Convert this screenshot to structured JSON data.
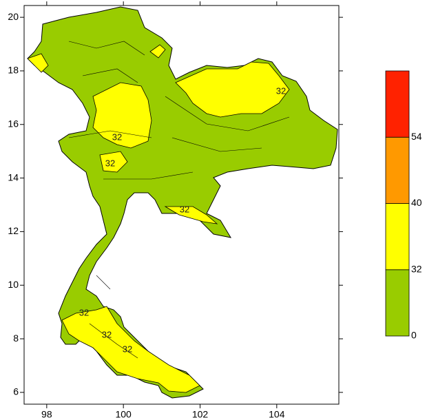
{
  "map": {
    "xlim": [
      97.41,
      105.62
    ],
    "ylim": [
      5.56,
      20.44
    ],
    "xticks": [
      98,
      100,
      102,
      104
    ],
    "yticks": [
      6,
      8,
      10,
      12,
      14,
      16,
      18,
      20
    ],
    "colorbar": {
      "levels": [
        0,
        32,
        40,
        54
      ],
      "colors": [
        "#99cc00",
        "#ffff00",
        "#ff9900",
        "#ff2200"
      ]
    },
    "contour_labels": [
      "32",
      "32",
      "32",
      "32",
      "32",
      "32",
      "32"
    ]
  }
}
